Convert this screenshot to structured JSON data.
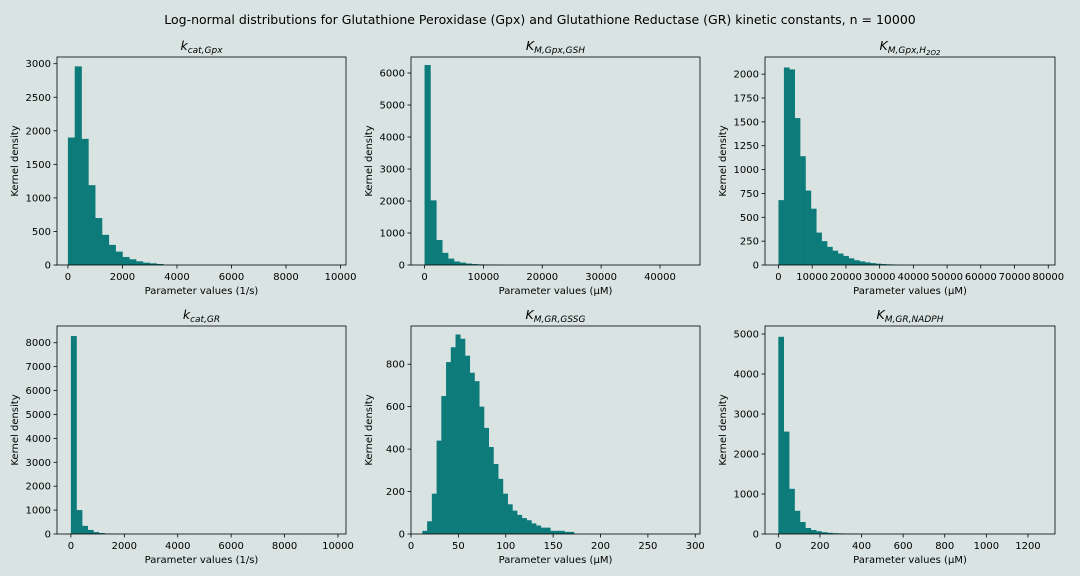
{
  "figure_title": "Log-normal distributions for Glutathione Peroxidase (Gpx) and Glutathione Reductase (GR) kinetic constants, n = 10000",
  "colors": {
    "bar": "#0e7b7b",
    "background": "#d9e4e2",
    "axes": "#000000"
  },
  "chart_data": [
    {
      "type": "bar",
      "title": "k_cat,Gpx",
      "title_base": "k",
      "title_sub": "cat,Gpx",
      "title_subsub": "",
      "xlabel": "Parameter values (1/s)",
      "ylabel": "Kernel density",
      "xlim": [
        -400,
        10200
      ],
      "ylim": [
        0,
        3100
      ],
      "xticks": [
        0,
        2000,
        4000,
        6000,
        8000,
        10000
      ],
      "yticks": [
        0,
        500,
        1000,
        1500,
        2000,
        2500,
        3000
      ],
      "bin_start": 0,
      "bin_width": 250,
      "values": [
        1900,
        2960,
        1880,
        1190,
        700,
        450,
        300,
        200,
        120,
        85,
        55,
        35,
        25,
        15
      ]
    },
    {
      "type": "bar",
      "title": "K_M,Gpx,GSH",
      "title_base": "K",
      "title_sub": "M,Gpx,GSH",
      "title_subsub": "",
      "xlabel": "Parameter values (µM)",
      "ylabel": "Kernel density",
      "xlim": [
        -2300,
        46800
      ],
      "ylim": [
        0,
        6500
      ],
      "xticks": [
        0,
        10000,
        20000,
        30000,
        40000
      ],
      "yticks": [
        0,
        1000,
        2000,
        3000,
        4000,
        5000,
        6000
      ],
      "bin_start": 0,
      "bin_width": 1000,
      "values": [
        6250,
        2020,
        780,
        380,
        200,
        110,
        75,
        45,
        30,
        20,
        15,
        10,
        8
      ]
    },
    {
      "type": "bar",
      "title": "K_M,Gpx,H2O2",
      "title_base": "K",
      "title_sub": "M,Gpx,H",
      "title_subsub": "2O2",
      "xlabel": "Parameter values (µM)",
      "ylabel": "Kernel density",
      "xlim": [
        -4000,
        82000
      ],
      "ylim": [
        0,
        2180
      ],
      "xticks": [
        0,
        10000,
        20000,
        30000,
        40000,
        50000,
        60000,
        70000,
        80000
      ],
      "yticks": [
        0,
        250,
        500,
        750,
        1000,
        1250,
        1500,
        1750,
        2000
      ],
      "bin_start": 0,
      "bin_width": 1600,
      "values": [
        680,
        2070,
        2050,
        1540,
        1140,
        780,
        590,
        340,
        250,
        190,
        150,
        120,
        95,
        70,
        50,
        38,
        28,
        20,
        14,
        10,
        7,
        5
      ]
    },
    {
      "type": "bar",
      "title": "k_cat,GR",
      "title_base": "k",
      "title_sub": "cat,GR",
      "title_subsub": "",
      "xlabel": "Parameter values (1/s)",
      "ylabel": "Kernel density",
      "xlim": [
        -520,
        10300
      ],
      "ylim": [
        0,
        8700
      ],
      "xticks": [
        0,
        2000,
        4000,
        6000,
        8000,
        10000
      ],
      "yticks": [
        0,
        1000,
        2000,
        3000,
        4000,
        5000,
        6000,
        7000,
        8000
      ],
      "bin_start": 0,
      "bin_width": 210,
      "values": [
        8280,
        1000,
        340,
        170,
        80,
        40,
        20,
        12,
        8,
        5
      ]
    },
    {
      "type": "bar",
      "title": "K_M,GR,GSSG",
      "title_base": "K",
      "title_sub": "M,GR,GSSG",
      "title_subsub": "",
      "xlabel": "Parameter values (µM)",
      "ylabel": "Kernel density",
      "xlim": [
        0,
        305
      ],
      "ylim": [
        0,
        980
      ],
      "xticks": [
        0,
        50,
        100,
        150,
        200,
        250,
        300
      ],
      "yticks": [
        0,
        200,
        400,
        600,
        800
      ],
      "bin_start": 12,
      "bin_width": 5,
      "values": [
        15,
        60,
        190,
        440,
        650,
        810,
        880,
        940,
        920,
        840,
        760,
        720,
        600,
        500,
        410,
        330,
        260,
        190,
        140,
        110,
        90,
        75,
        65,
        50,
        40,
        30,
        30,
        15,
        15,
        15,
        10,
        10
      ]
    },
    {
      "type": "bar",
      "title": "K_M,GR,NADPH",
      "title_base": "K",
      "title_sub": "M,GR,NADPH",
      "title_subsub": "",
      "xlabel": "Parameter values (µM)",
      "ylabel": "Kernel density",
      "xlim": [
        -64,
        1330
      ],
      "ylim": [
        0,
        5200
      ],
      "xticks": [
        0,
        200,
        400,
        600,
        800,
        1000,
        1200
      ],
      "yticks": [
        0,
        1000,
        2000,
        3000,
        4000,
        5000
      ],
      "bin_start": 0,
      "bin_width": 26,
      "values": [
        4930,
        2560,
        1130,
        580,
        300,
        150,
        100,
        70,
        45,
        30,
        20,
        15,
        10,
        8,
        6
      ]
    }
  ]
}
